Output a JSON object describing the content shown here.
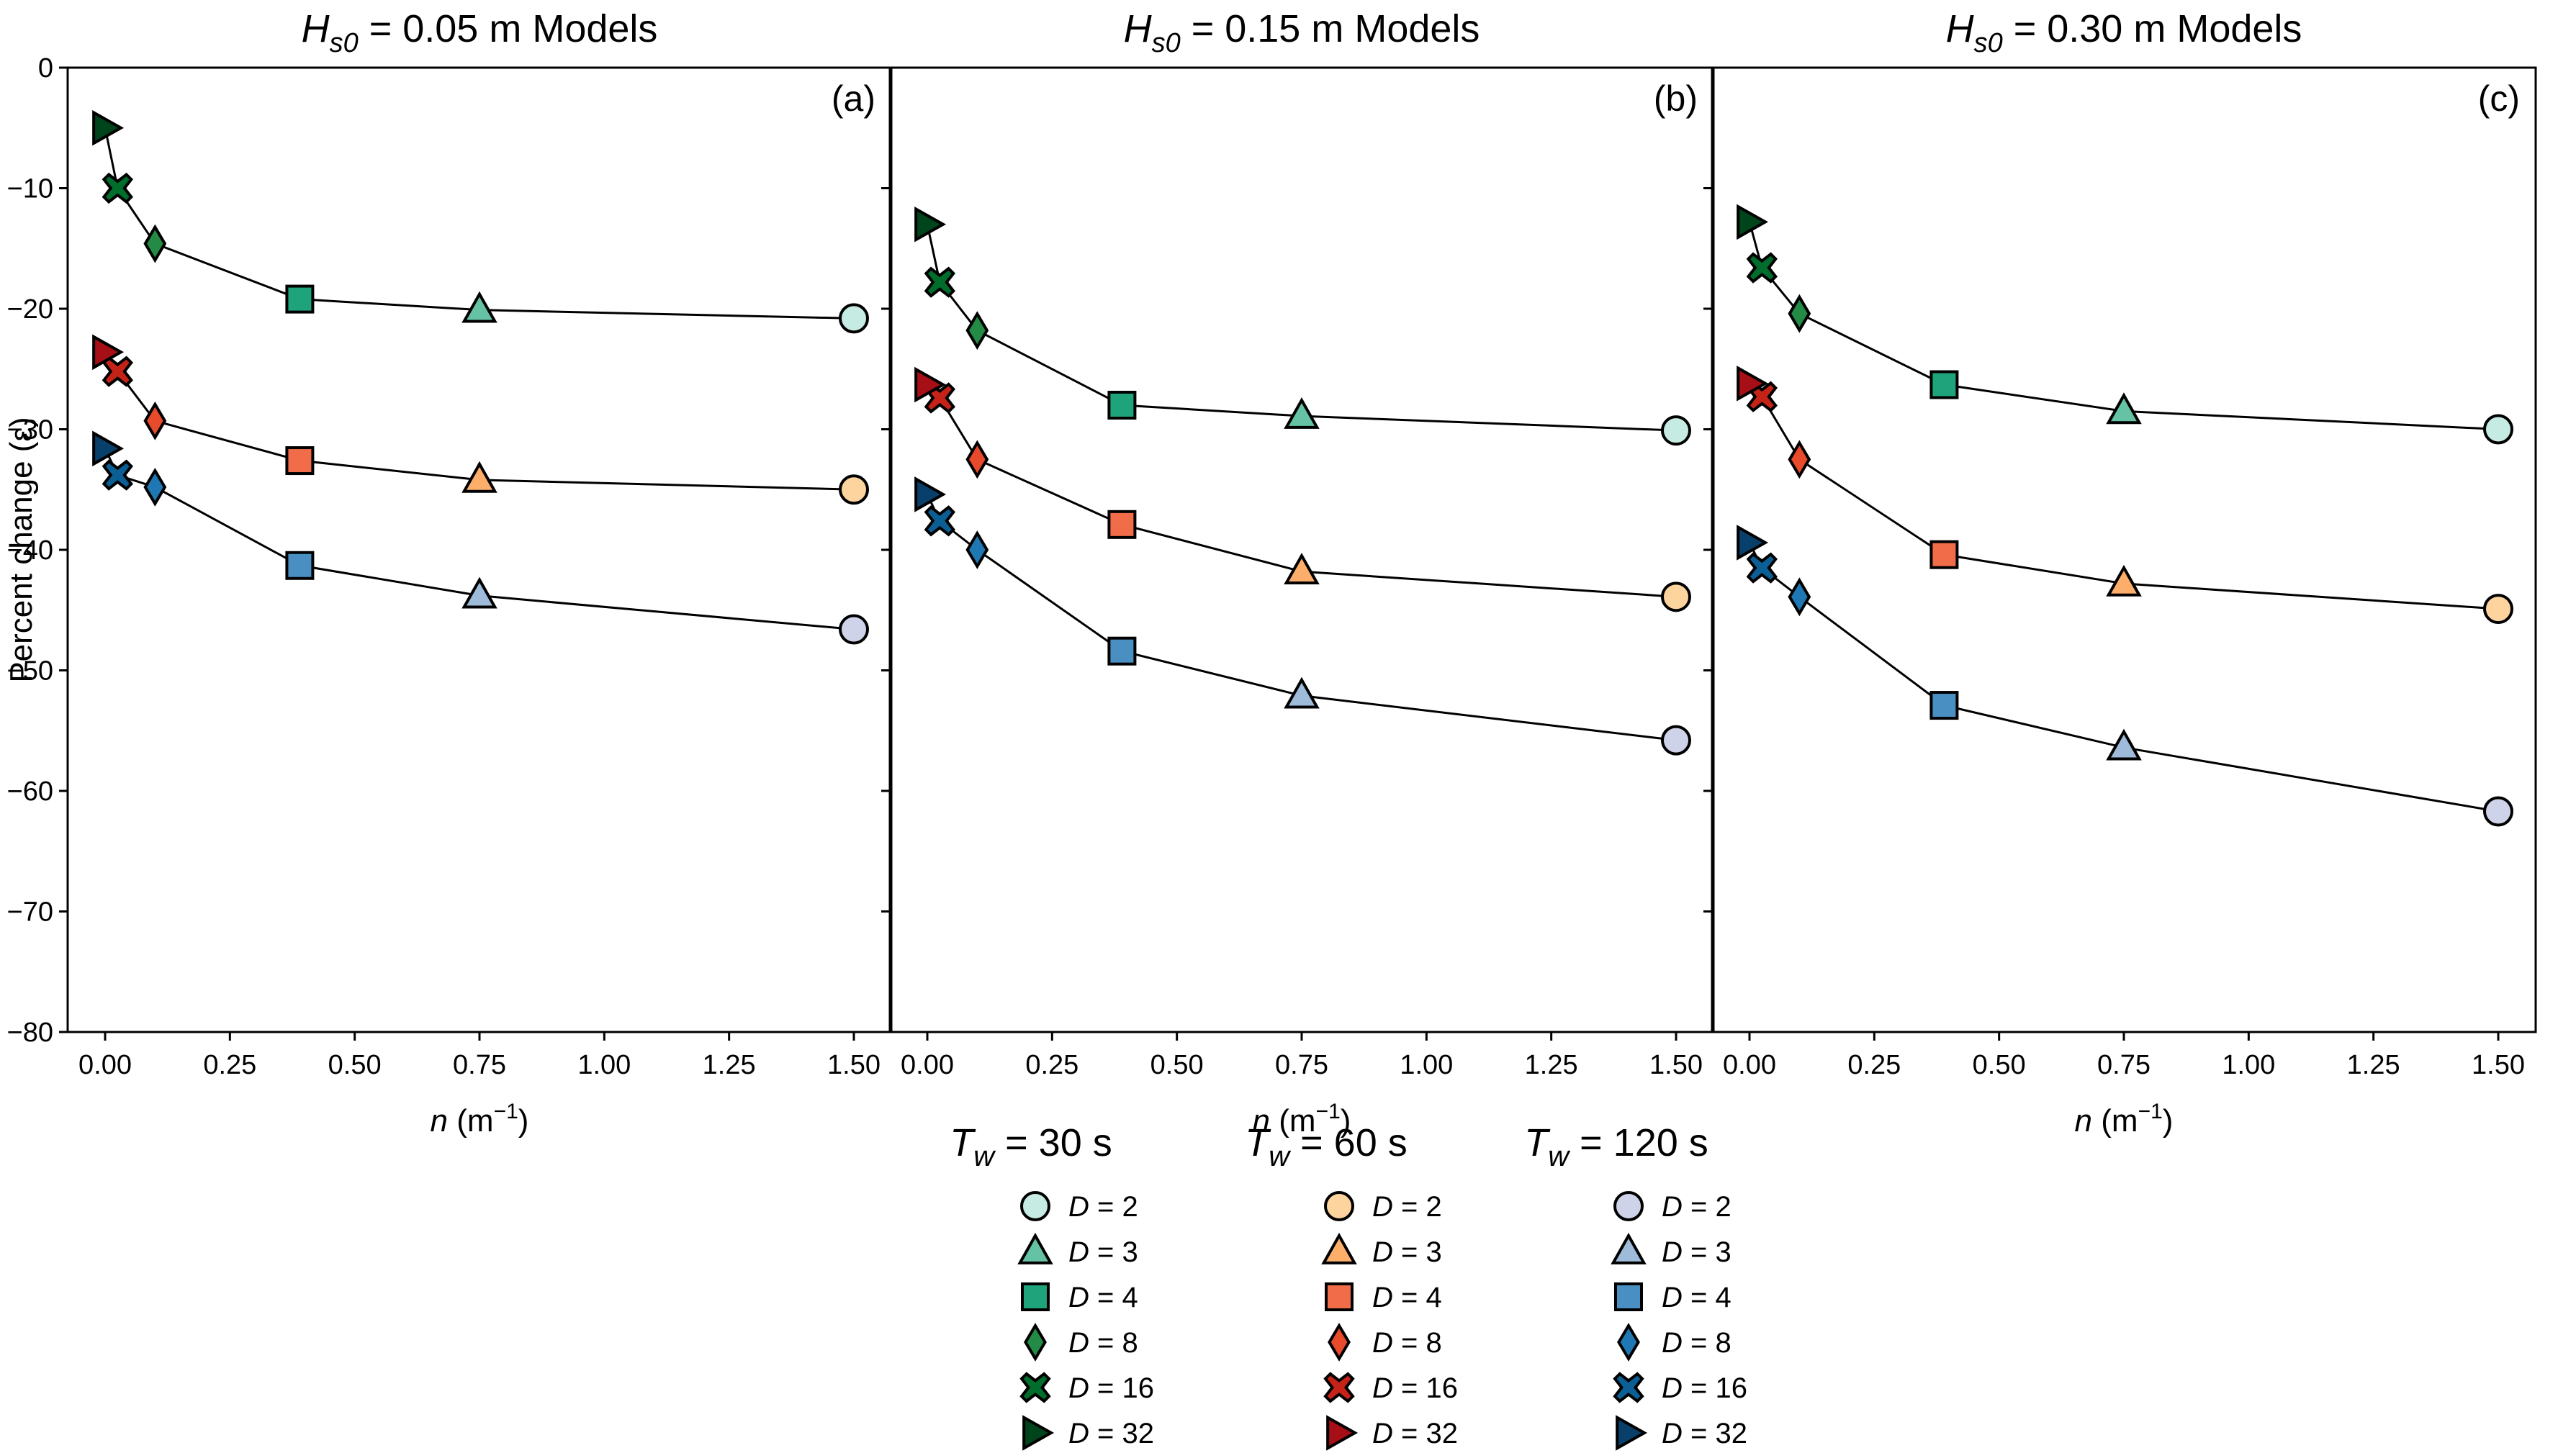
{
  "chart_data": {
    "type": "scatter",
    "ylabel": "Percent change (ε)",
    "xlabel": "n   (m⁻¹)",
    "ylim": [
      -80,
      0
    ],
    "xlim": [
      -0.075,
      1.575
    ],
    "yticks": [
      0,
      -10,
      -20,
      -30,
      -40,
      -50,
      -60,
      -70,
      -80
    ],
    "ytick_labels": [
      "0",
      "−10",
      "−20",
      "−30",
      "−40",
      "−50",
      "−60",
      "−70",
      "−80"
    ],
    "xticks": [
      0,
      0.25,
      0.5,
      0.75,
      1.0,
      1.25,
      1.5
    ],
    "xtick_labels": [
      "0.00",
      "0.25",
      "0.50",
      "0.75",
      "1.00",
      "1.25",
      "1.50"
    ],
    "x": [
      1.5,
      0.75,
      0.39,
      0.1,
      0.025,
      0.0
    ],
    "D_values": [
      2,
      3,
      4,
      8,
      16,
      32
    ],
    "grid": false,
    "legend_placement": "bottom-center",
    "panels": [
      {
        "title_symbol": "H",
        "title_subscript": "s0",
        "title_rest": " = 0.05 m Models",
        "letter": "(a)",
        "series": [
          {
            "period": "30",
            "values": [
              -20.8,
              -20.1,
              -19.2,
              -14.6,
              -10.0,
              -5.0
            ]
          },
          {
            "period": "60",
            "values": [
              -35.0,
              -34.2,
              -32.6,
              -29.3,
              -25.2,
              -23.6
            ]
          },
          {
            "period": "120",
            "values": [
              -46.6,
              -43.8,
              -41.3,
              -34.8,
              -33.8,
              -31.6
            ]
          }
        ]
      },
      {
        "title_symbol": "H",
        "title_subscript": "s0",
        "title_rest": " = 0.15 m Models",
        "letter": "(b)",
        "series": [
          {
            "period": "30",
            "values": [
              -30.1,
              -28.9,
              -28.0,
              -21.8,
              -17.8,
              -13.0
            ]
          },
          {
            "period": "60",
            "values": [
              -43.9,
              -41.8,
              -37.9,
              -32.5,
              -27.4,
              -26.3
            ]
          },
          {
            "period": "120",
            "values": [
              -55.8,
              -52.1,
              -48.4,
              -40.0,
              -37.6,
              -35.4
            ]
          }
        ]
      },
      {
        "title_symbol": "H",
        "title_subscript": "s0",
        "title_rest": " = 0.30 m Models",
        "letter": "(c)",
        "series": [
          {
            "period": "30",
            "values": [
              -30.0,
              -28.5,
              -26.3,
              -20.4,
              -16.6,
              -12.8
            ]
          },
          {
            "period": "60",
            "values": [
              -44.9,
              -42.8,
              -40.4,
              -32.5,
              -27.3,
              -26.2
            ]
          },
          {
            "period": "120",
            "values": [
              -61.7,
              -56.4,
              -52.9,
              -43.9,
              -41.5,
              -39.4
            ]
          }
        ]
      }
    ],
    "legend": {
      "groups": [
        {
          "title_symbol": "T",
          "title_subscript": "w",
          "title_rest": " = 30 s",
          "period": "30"
        },
        {
          "title_symbol": "T",
          "title_subscript": "w",
          "title_rest": " = 60 s",
          "period": "60"
        },
        {
          "title_symbol": "T",
          "title_subscript": "w",
          "title_rest": " = 120 s",
          "period": "120"
        }
      ],
      "entries": [
        {
          "var": "D",
          "rest": " = 2",
          "marker": "circle"
        },
        {
          "var": "D",
          "rest": " = 3",
          "marker": "triangle-up"
        },
        {
          "var": "D",
          "rest": " = 4",
          "marker": "square"
        },
        {
          "var": "D",
          "rest": " = 8",
          "marker": "thin-diamond"
        },
        {
          "var": "D",
          "rest": " = 16",
          "marker": "x-filled"
        },
        {
          "var": "D",
          "rest": " = 32",
          "marker": "triangle-right"
        }
      ]
    },
    "colors": {
      "30": [
        "#c6ebe2",
        "#66c2a4",
        "#1fa37a",
        "#238b45",
        "#006d2c",
        "#00441b"
      ],
      "60": [
        "#fdd49e",
        "#fdae6b",
        "#f16d4a",
        "#e84a2c",
        "#c62318",
        "#a50f15"
      ],
      "120": [
        "#cfd3ea",
        "#9ebcda",
        "#4a8fc2",
        "#1f78b4",
        "#0b5f94",
        "#08406b"
      ]
    }
  }
}
